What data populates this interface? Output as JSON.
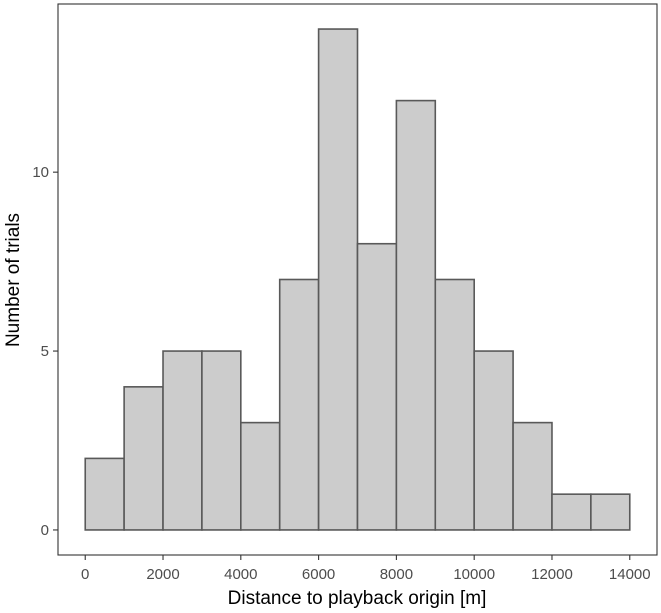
{
  "chart_data": {
    "type": "bar",
    "subtype": "histogram",
    "title": "",
    "xlabel": "Distance to playback origin [m]",
    "ylabel": "Number of trials",
    "bin_width": 1000,
    "bins": [
      {
        "x0": 0,
        "x1": 1000,
        "count": 2
      },
      {
        "x0": 1000,
        "x1": 2000,
        "count": 4
      },
      {
        "x0": 2000,
        "x1": 3000,
        "count": 5
      },
      {
        "x0": 3000,
        "x1": 4000,
        "count": 5
      },
      {
        "x0": 4000,
        "x1": 5000,
        "count": 3
      },
      {
        "x0": 5000,
        "x1": 6000,
        "count": 7
      },
      {
        "x0": 6000,
        "x1": 7000,
        "count": 14
      },
      {
        "x0": 7000,
        "x1": 8000,
        "count": 8
      },
      {
        "x0": 8000,
        "x1": 9000,
        "count": 12
      },
      {
        "x0": 9000,
        "x1": 10000,
        "count": 7
      },
      {
        "x0": 10000,
        "x1": 11000,
        "count": 5
      },
      {
        "x0": 11000,
        "x1": 12000,
        "count": 3
      },
      {
        "x0": 12000,
        "x1": 13000,
        "count": 1
      },
      {
        "x0": 13000,
        "x1": 14000,
        "count": 1
      }
    ],
    "xticks": [
      0,
      2000,
      4000,
      6000,
      8000,
      10000,
      12000,
      14000
    ],
    "yticks": [
      0,
      5,
      10
    ],
    "xlim": [
      -700,
      14700
    ],
    "ylim": [
      -0.7,
      14.7
    ],
    "grid": false,
    "legend": "none",
    "colors": {
      "bar_fill": "#cccccc",
      "bar_stroke": "#595959",
      "axis": "#333333",
      "tick_text": "#4d4d4d"
    }
  }
}
